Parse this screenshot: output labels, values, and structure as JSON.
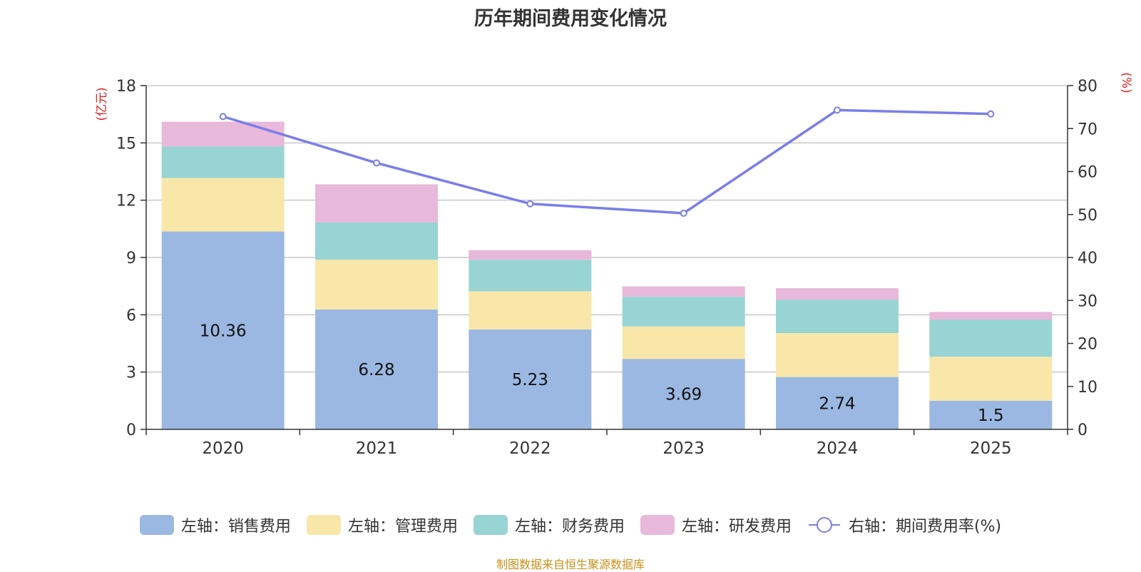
{
  "chart_data": {
    "type": "bar",
    "stacked": true,
    "title": "历年期间费用变化情况",
    "source": "制图数据来自恒生聚源数据库",
    "categories": [
      "2020",
      "2021",
      "2022",
      "2023",
      "2024",
      "2025"
    ],
    "left_axis": {
      "label": "(亿元)",
      "ylim": [
        0,
        18
      ],
      "ticks": [
        "0",
        "3",
        "6",
        "9",
        "12",
        "15",
        "18"
      ]
    },
    "right_axis": {
      "label": "(%)",
      "ylim": [
        0,
        80
      ],
      "ticks": [
        "0",
        "10",
        "20",
        "30",
        "40",
        "50",
        "60",
        "70",
        "80"
      ]
    },
    "series": [
      {
        "name": "左轴：销售费用",
        "color": "#9bb8e2",
        "values": [
          10.36,
          6.28,
          5.23,
          3.69,
          2.74,
          1.5
        ],
        "labels": [
          "10.36",
          "6.28",
          "5.23",
          "3.69",
          "2.74",
          "1.5"
        ]
      },
      {
        "name": "左轴：管理费用",
        "color": "#f8e7a8",
        "values": [
          2.8,
          2.6,
          2.0,
          1.7,
          2.3,
          2.3
        ]
      },
      {
        "name": "左轴：财务费用",
        "color": "#98d4d4",
        "values": [
          1.65,
          1.95,
          1.65,
          1.55,
          1.75,
          1.95
        ]
      },
      {
        "name": "左轴：研发费用",
        "color": "#e8b9da",
        "values": [
          1.3,
          2.0,
          0.5,
          0.55,
          0.6,
          0.4
        ]
      }
    ],
    "line_series": {
      "name": "右轴：期间费用率(%)",
      "color": "#7b7ee8",
      "values": [
        72.8,
        62.0,
        52.5,
        50.3,
        74.3,
        73.4
      ]
    },
    "grid": true
  }
}
